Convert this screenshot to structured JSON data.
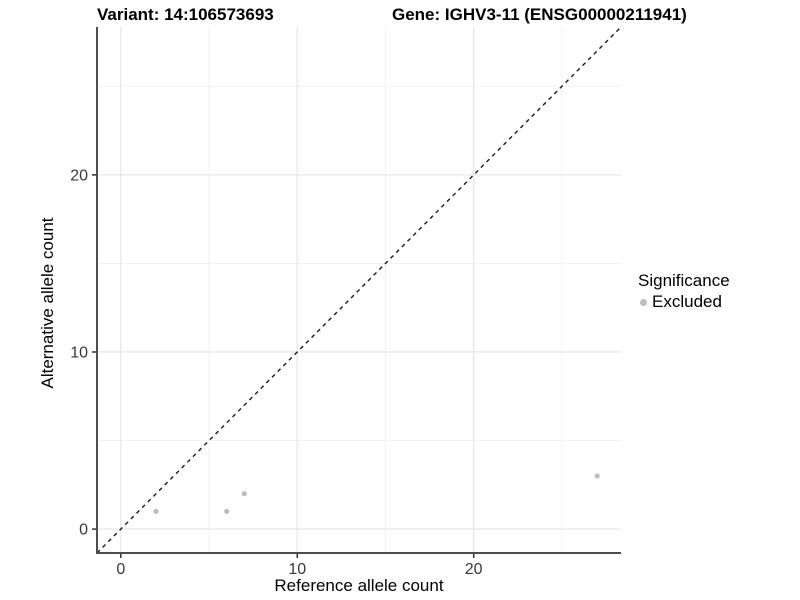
{
  "chart_data": {
    "type": "scatter",
    "title_left": "Variant: 14:106573693",
    "title_right": "Gene: IGHV3-11 (ENSG00000211941)",
    "xlabel": "Reference allele count",
    "ylabel": "Alternative allele count",
    "xlim": [
      -1.35,
      28.35
    ],
    "ylim": [
      -1.35,
      28.35
    ],
    "x_major_ticks": [
      0,
      10,
      20
    ],
    "x_minor_ticks": [
      5,
      15,
      25
    ],
    "y_major_ticks": [
      0,
      10,
      20
    ],
    "y_minor_ticks": [
      5,
      15,
      25
    ],
    "grid": true,
    "identity_line": {
      "show": true,
      "style": "dashed",
      "color": "#1a1a1a"
    },
    "series": [
      {
        "name": "Excluded",
        "color": "#bdbdbd",
        "points": [
          {
            "x": 2,
            "y": 1
          },
          {
            "x": 6,
            "y": 1
          },
          {
            "x": 7,
            "y": 2
          },
          {
            "x": 27,
            "y": 3
          }
        ]
      }
    ],
    "legend": {
      "title": "Significance",
      "position": "right",
      "items": [
        {
          "label": "Excluded",
          "color": "#bdbdbd"
        }
      ]
    },
    "colors": {
      "axis_line": "#4d4d4d",
      "tick_mark": "#333333",
      "tick_label": "#383838",
      "grid_major": "#e3e3e3",
      "grid_minor": "#f0f0f0",
      "background": "#ffffff"
    }
  }
}
